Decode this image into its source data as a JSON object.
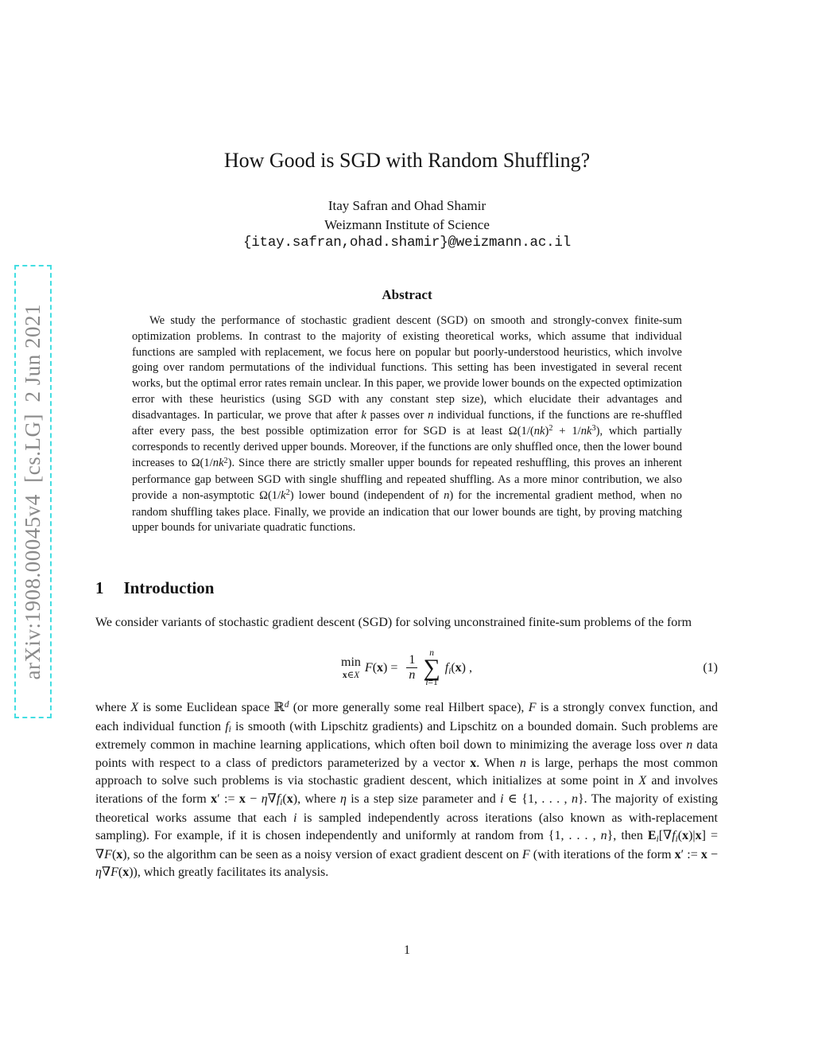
{
  "arxiv_banner": {
    "text": "arXiv:1908.00045v4  [cs.LG]  2 Jun 2021",
    "text_color": "#8a8a8a",
    "border_color": "#43dee2"
  },
  "header": {
    "title": "How Good is SGD with Random Shuffling?",
    "authors": "Itay Safran and Ohad Shamir",
    "affiliation": "Weizmann Institute of Science",
    "email": "{itay.safran,ohad.shamir}@weizmann.ac.il"
  },
  "abstract": {
    "heading": "Abstract",
    "body": [
      {
        "t": "We study the performance of stochastic gradient descent (SGD) on smooth and strongly-convex finite-sum optimization problems. In contrast to the majority of existing theoretical works, which assume that individual functions are sampled with replacement, we focus here on popular but poorly-understood heuristics, which involve going over random permutations of the individual functions. This setting has been investigated in several recent works, but the optimal error rates remain unclear. In this paper, we provide lower bounds on the expected optimization error with these heuristics (using SGD with any constant step size), which elucidate their advantages and disadvantages. In particular, we prove that after "
      },
      {
        "t": "k",
        "c": "i"
      },
      {
        "t": " passes over "
      },
      {
        "t": "n",
        "c": "i"
      },
      {
        "t": " individual functions, if the functions are re-shuffled after every pass, the best possible optimization error for SGD is at least Ω"
      },
      {
        "t": "(1/("
      },
      {
        "t": "nk",
        "c": "i"
      },
      {
        "t": ")"
      },
      {
        "t": "2",
        "c": "sup"
      },
      {
        "t": " + 1/"
      },
      {
        "t": "nk",
        "c": "i"
      },
      {
        "t": "3",
        "c": "sup"
      },
      {
        "t": "), which partially corresponds to recently derived upper bounds. Moreover, if the functions are only shuffled once, then the lower bound increases to Ω(1/"
      },
      {
        "t": "nk",
        "c": "i"
      },
      {
        "t": "2",
        "c": "sup"
      },
      {
        "t": "). Since there are strictly smaller upper bounds for repeated reshuffling, this proves an inherent performance gap between SGD with single shuffling and repeated shuffling. As a more minor contribution, we also provide a non-asymptotic Ω(1/"
      },
      {
        "t": "k",
        "c": "i"
      },
      {
        "t": "2",
        "c": "sup"
      },
      {
        "t": ") lower bound (independent of "
      },
      {
        "t": "n",
        "c": "i"
      },
      {
        "t": ") for the incremental gradient method, when no random shuffling takes place. Finally, we provide an indication that our lower bounds are tight, by proving matching upper bounds for univariate quadratic functions."
      }
    ]
  },
  "introduction": {
    "number": "1",
    "title": "Introduction",
    "para1": [
      {
        "t": "We consider variants of stochastic gradient descent (SGD) for solving unconstrained finite-sum problems of the form"
      }
    ],
    "equation": {
      "operator": "min",
      "operator_sub": [
        {
          "t": "x",
          "c": "b"
        },
        {
          "t": "∈"
        },
        {
          "t": "X",
          "c": "i"
        }
      ],
      "lhs": [
        {
          "t": "F",
          "c": "i"
        },
        {
          "t": "("
        },
        {
          "t": "x",
          "c": "b"
        },
        {
          "t": ") ="
        }
      ],
      "frac_numerator": "1",
      "frac_denominator": "n",
      "sum_upper": "n",
      "sum_symbol": "∑",
      "sum_lower": [
        {
          "t": "i",
          "c": "i"
        },
        {
          "t": "=1"
        }
      ],
      "rhs": [
        {
          "t": "f",
          "c": "i"
        },
        {
          "t": "i",
          "c": "sub i"
        },
        {
          "t": "("
        },
        {
          "t": "x",
          "c": "b"
        },
        {
          "t": ") ,"
        }
      ],
      "label": "(1)"
    },
    "para2": [
      {
        "t": "where "
      },
      {
        "t": "X",
        "c": "i"
      },
      {
        "t": " is some Euclidean space "
      },
      {
        "t": "ℝ"
      },
      {
        "t": "d",
        "c": "sup i"
      },
      {
        "t": " (or more generally some real Hilbert space), "
      },
      {
        "t": "F",
        "c": "i"
      },
      {
        "t": " is a strongly convex function, and each individual function "
      },
      {
        "t": "f",
        "c": "i"
      },
      {
        "t": "i",
        "c": "sub i"
      },
      {
        "t": " is smooth (with Lipschitz gradients) and Lipschitz on a bounded domain. Such problems are extremely common in machine learning applications, which often boil down to minimizing the average loss over "
      },
      {
        "t": "n",
        "c": "i"
      },
      {
        "t": " data points with respect to a class of predictors parameterized by a vector "
      },
      {
        "t": "x",
        "c": "b"
      },
      {
        "t": ". When "
      },
      {
        "t": "n",
        "c": "i"
      },
      {
        "t": " is large, perhaps the most common approach to solve such problems is via stochastic gradient descent, which initializes at some point in "
      },
      {
        "t": "X",
        "c": "i"
      },
      {
        "t": " and involves iterations of the form "
      },
      {
        "t": "x",
        "c": "b"
      },
      {
        "t": "′ := "
      },
      {
        "t": "x",
        "c": "b"
      },
      {
        "t": " − "
      },
      {
        "t": "η",
        "c": "i"
      },
      {
        "t": "∇"
      },
      {
        "t": "f",
        "c": "i"
      },
      {
        "t": "i",
        "c": "sub i"
      },
      {
        "t": "("
      },
      {
        "t": "x",
        "c": "b"
      },
      {
        "t": "), where "
      },
      {
        "t": "η",
        "c": "i"
      },
      {
        "t": " is a step size parameter and "
      },
      {
        "t": "i",
        "c": "i"
      },
      {
        "t": " ∈ {1, . . . , "
      },
      {
        "t": "n",
        "c": "i"
      },
      {
        "t": "}. The majority of existing theoretical works assume that each "
      },
      {
        "t": "i",
        "c": "i"
      },
      {
        "t": " is sampled independently across iterations (also known as with-replacement sampling). For example, if it is chosen independently and uniformly at random from {1, . . . , "
      },
      {
        "t": "n",
        "c": "i"
      },
      {
        "t": "}, then "
      },
      {
        "t": "E",
        "c": "bb"
      },
      {
        "t": "i",
        "c": "sub i"
      },
      {
        "t": "[∇"
      },
      {
        "t": "f",
        "c": "i"
      },
      {
        "t": "i",
        "c": "sub i"
      },
      {
        "t": "("
      },
      {
        "t": "x",
        "c": "b"
      },
      {
        "t": ")|"
      },
      {
        "t": "x",
        "c": "b"
      },
      {
        "t": "] = ∇"
      },
      {
        "t": "F",
        "c": "i"
      },
      {
        "t": "("
      },
      {
        "t": "x",
        "c": "b"
      },
      {
        "t": "), so the algorithm can be seen as a noisy version of exact gradient descent on "
      },
      {
        "t": "F",
        "c": "i"
      },
      {
        "t": " (with iterations of the form "
      },
      {
        "t": "x",
        "c": "b"
      },
      {
        "t": "′ := "
      },
      {
        "t": "x",
        "c": "b"
      },
      {
        "t": " − "
      },
      {
        "t": "η",
        "c": "i"
      },
      {
        "t": "∇"
      },
      {
        "t": "F",
        "c": "i"
      },
      {
        "t": "("
      },
      {
        "t": "x",
        "c": "b"
      },
      {
        "t": ")), which greatly facilitates its analysis."
      }
    ]
  },
  "footer": {
    "page_number": "1"
  }
}
